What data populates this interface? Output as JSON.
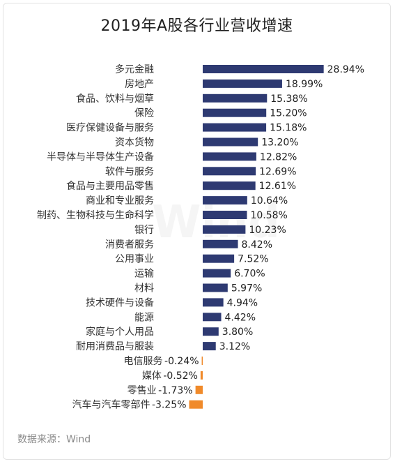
{
  "chart_data": {
    "type": "bar",
    "orientation": "horizontal",
    "title": "2019年A股各行业营收增速",
    "source": "数据来源：Wind",
    "watermark": "Wind",
    "categories": [
      "多元金融",
      "房地产",
      "食品、饮料与烟草",
      "保险",
      "医疗保健设备与服务",
      "资本货物",
      "半导体与半导体生产设备",
      "软件与服务",
      "食品与主要用品零售",
      "商业和专业服务",
      "制药、生物科技与生命科学",
      "银行",
      "消费者服务",
      "公用事业",
      "运输",
      "材料",
      "技术硬件与设备",
      "能源",
      "家庭与个人用品",
      "耐用消费品与服装",
      "电信服务",
      "媒体",
      "零售业",
      "汽车与汽车零部件"
    ],
    "values": [
      28.94,
      18.99,
      15.38,
      15.2,
      15.18,
      13.2,
      12.82,
      12.69,
      12.61,
      10.64,
      10.58,
      10.23,
      8.42,
      7.52,
      6.7,
      5.97,
      4.94,
      4.42,
      3.8,
      3.12,
      -0.24,
      -0.52,
      -1.73,
      -3.25
    ],
    "value_labels": [
      "28.94%",
      "18.99%",
      "15.38%",
      "15.20%",
      "15.18%",
      "13.20%",
      "12.82%",
      "12.69%",
      "12.61%",
      "10.64%",
      "10.58%",
      "10.23%",
      "8.42%",
      "7.52%",
      "6.70%",
      "5.97%",
      "4.94%",
      "4.42%",
      "3.80%",
      "3.12%",
      "-0.24%",
      "-0.52%",
      "-1.73%",
      "-3.25%"
    ],
    "unit": "%",
    "colors": {
      "positive": "#2e3a72",
      "negative": "#f08a2a"
    },
    "grid": false,
    "legend": "none"
  }
}
